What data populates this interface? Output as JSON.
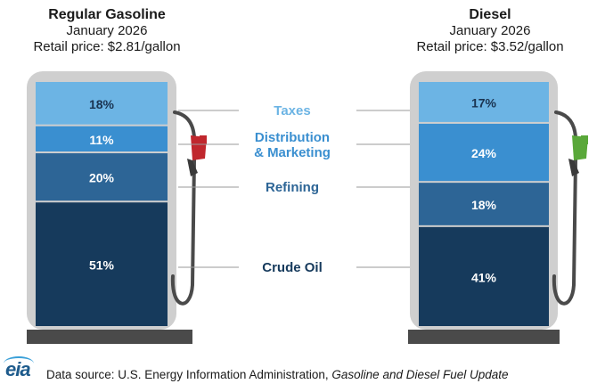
{
  "left_header": {
    "title": "Regular Gasoline",
    "date": "January 2026",
    "price": "Retail price: $2.81/gallon"
  },
  "right_header": {
    "title": "Diesel",
    "date": "January 2026",
    "price": "Retail price: $3.52/gallon"
  },
  "footer": {
    "logo": "eia",
    "source_prefix": "Data source: U.S. Energy Information Administration, ",
    "source_title": "Gasoline and Diesel Fuel Update"
  },
  "colors": {
    "taxes": "#6cb4e4",
    "distribution": "#3a8fd0",
    "refining": "#2d6596",
    "crude": "#163a5c",
    "pump_body": "#cfcfcf",
    "pump_base": "#4a4a4a",
    "gas_nozzle": "#c0272d",
    "diesel_nozzle": "#5aa83a",
    "label_taxes": "#6cb4e4",
    "label_distribution": "#3a8fd0",
    "label_refining": "#2d6596",
    "label_crude": "#163a5c"
  },
  "chart_data": [
    {
      "type": "bar",
      "title": "Regular Gasoline",
      "categories": [
        "Taxes",
        "Distribution & Marketing",
        "Refining",
        "Crude Oil"
      ],
      "values": [
        18,
        11,
        20,
        51
      ],
      "labels": [
        "18%",
        "11%",
        "20%",
        "51%"
      ]
    },
    {
      "type": "bar",
      "title": "Diesel",
      "categories": [
        "Taxes",
        "Distribution & Marketing",
        "Refining",
        "Crude Oil"
      ],
      "values": [
        17,
        24,
        18,
        41
      ],
      "labels": [
        "17%",
        "24%",
        "18%",
        "41%"
      ]
    }
  ],
  "component_labels": [
    [
      "Taxes"
    ],
    [
      "Distribution",
      "& Marketing"
    ],
    [
      "Refining"
    ],
    [
      "Crude Oil"
    ]
  ]
}
